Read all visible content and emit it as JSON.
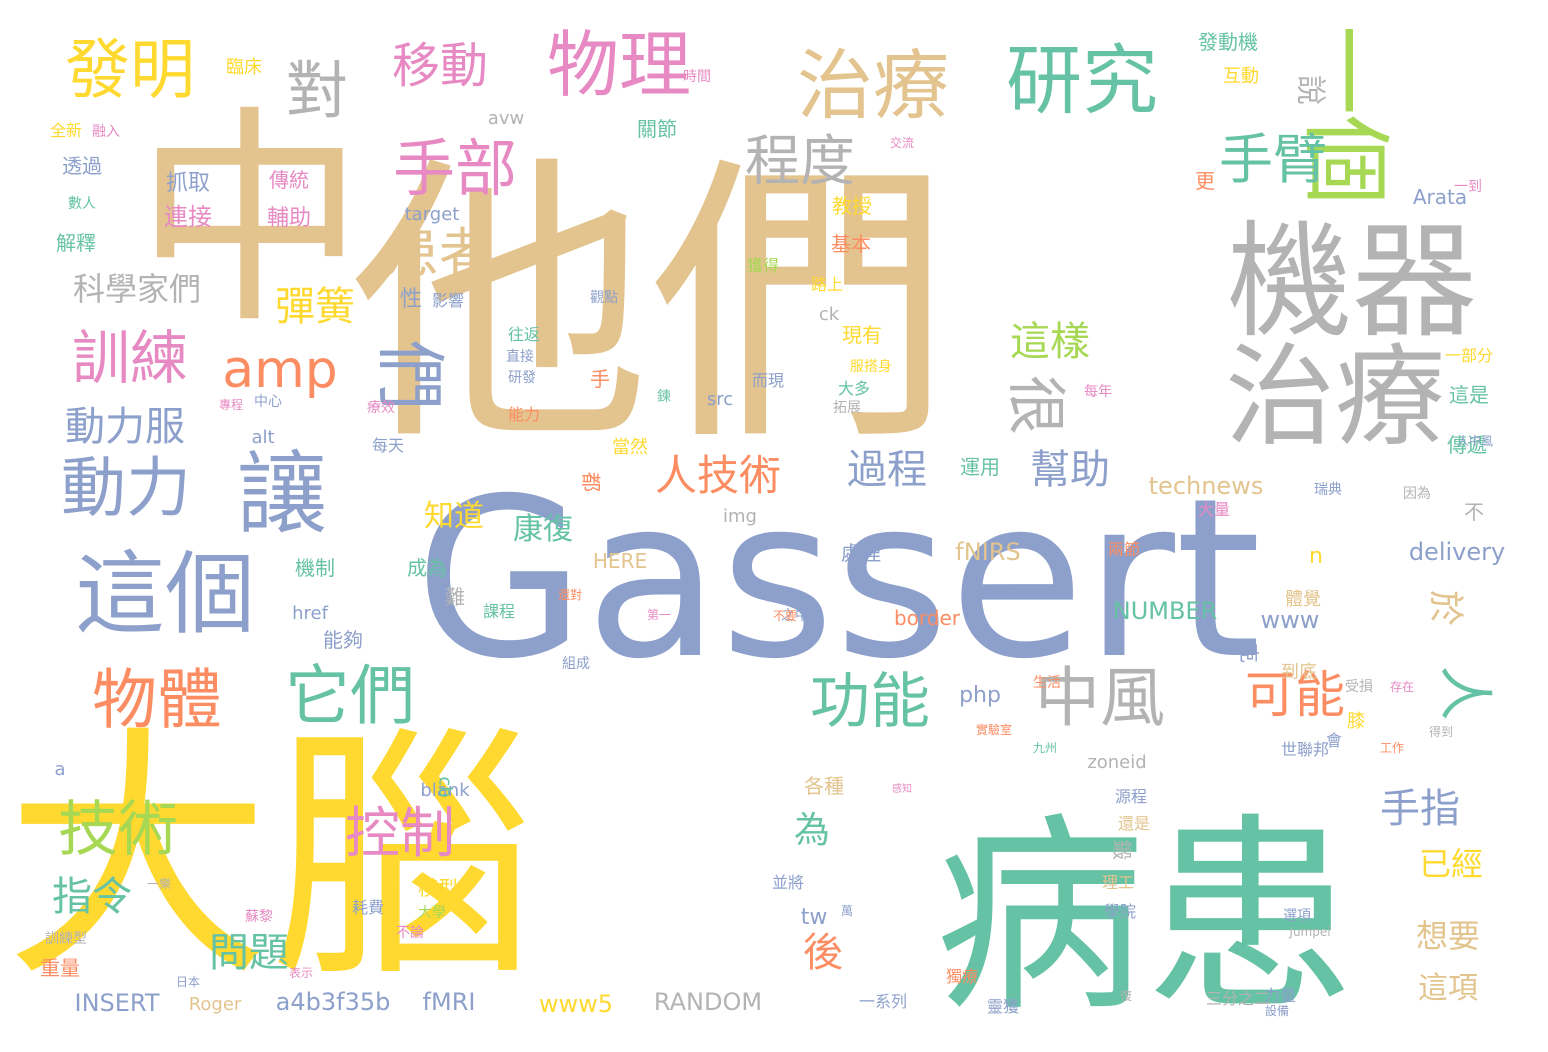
{
  "palette": {
    "tan": "#E3C48E",
    "blue": "#8DA0CB",
    "yellow": "#FFD92F",
    "green": "#66C2A5",
    "grey": "#B3B3B3",
    "pink": "#E78AC3",
    "orange": "#FC8D62",
    "lime": "#A6D854"
  },
  "words": [
    {
      "text": "他們",
      "color": "tan"
    },
    {
      "text": "中",
      "color": "tan"
    },
    {
      "text": "大腦",
      "color": "yellow"
    },
    {
      "text": "病患",
      "color": "green"
    },
    {
      "text": "Gassert",
      "color": "blue"
    },
    {
      "text": "機器",
      "color": "grey"
    },
    {
      "text": "一個",
      "color": "lime"
    },
    {
      "text": "治療",
      "color": "grey"
    },
    {
      "text": "研究",
      "color": "green"
    },
    {
      "text": "治療",
      "color": "tan"
    },
    {
      "text": "物理",
      "color": "pink"
    },
    {
      "text": "發明",
      "color": "yellow"
    },
    {
      "text": "對",
      "color": "grey"
    },
    {
      "text": "移動",
      "color": "pink"
    },
    {
      "text": "手部",
      "color": "pink"
    },
    {
      "text": "程度",
      "color": "grey"
    },
    {
      "text": "手臂",
      "color": "green"
    },
    {
      "text": "說",
      "color": "grey"
    },
    {
      "text": "讓",
      "color": "blue"
    },
    {
      "text": "動力",
      "color": "blue"
    },
    {
      "text": "訓練",
      "color": "pink"
    },
    {
      "text": "amp",
      "color": "orange"
    },
    {
      "text": "們",
      "color": "blue"
    },
    {
      "text": "很",
      "color": "grey"
    },
    {
      "text": "患者",
      "color": "tan"
    },
    {
      "text": "彈簧",
      "color": "yellow"
    },
    {
      "text": "這樣",
      "color": "lime"
    },
    {
      "text": "科學家們",
      "color": "grey"
    },
    {
      "text": "動力服",
      "color": "blue"
    },
    {
      "text": "這個",
      "color": "blue"
    },
    {
      "text": "人技術",
      "color": "orange"
    },
    {
      "text": "過程",
      "color": "blue"
    },
    {
      "text": "幫助",
      "color": "blue"
    },
    {
      "text": "物體",
      "color": "orange"
    },
    {
      "text": "它們",
      "color": "green"
    },
    {
      "text": "功能",
      "color": "green"
    },
    {
      "text": "中風",
      "color": "grey"
    },
    {
      "text": "可能",
      "color": "orange"
    },
    {
      "text": "人",
      "color": "green"
    },
    {
      "text": "技術",
      "color": "lime"
    },
    {
      "text": "控制",
      "color": "pink"
    },
    {
      "text": "康復",
      "color": "green"
    },
    {
      "text": "知道",
      "color": "yellow"
    },
    {
      "text": "於",
      "color": "tan"
    },
    {
      "text": "手指",
      "color": "blue"
    },
    {
      "text": "指令",
      "color": "green"
    },
    {
      "text": "問題",
      "color": "green"
    },
    {
      "text": "後",
      "color": "orange"
    },
    {
      "text": "為",
      "color": "green"
    },
    {
      "text": "已經",
      "color": "yellow"
    },
    {
      "text": "想要",
      "color": "tan"
    },
    {
      "text": "這項",
      "color": "tan"
    },
    {
      "text": "INSERT",
      "color": "blue"
    },
    {
      "text": "Roger",
      "color": "tan"
    },
    {
      "text": "a4b3f35b",
      "color": "blue"
    },
    {
      "text": "fMRI",
      "color": "blue"
    },
    {
      "text": "www5",
      "color": "yellow"
    },
    {
      "text": "RANDOM",
      "color": "grey"
    },
    {
      "text": "technews",
      "color": "tan"
    },
    {
      "text": "delivery",
      "color": "blue"
    },
    {
      "text": "NUMBER",
      "color": "green"
    },
    {
      "text": "fNIRS",
      "color": "tan"
    },
    {
      "text": "HERE",
      "color": "tan"
    },
    {
      "text": "border",
      "color": "orange"
    },
    {
      "text": "Arata",
      "color": "blue"
    },
    {
      "text": "target",
      "color": "blue"
    },
    {
      "text": "avw",
      "color": "grey"
    },
    {
      "text": "www",
      "color": "blue"
    },
    {
      "text": "php",
      "color": "blue"
    },
    {
      "text": "zoneid",
      "color": "grey"
    },
    {
      "text": "blank",
      "color": "blue"
    },
    {
      "text": "cb",
      "color": "green"
    },
    {
      "text": "tw",
      "color": "blue"
    },
    {
      "text": "src",
      "color": "blue"
    },
    {
      "text": "img",
      "color": "grey"
    },
    {
      "text": "href",
      "color": "blue"
    },
    {
      "text": "alt",
      "color": "blue"
    },
    {
      "text": "ck",
      "color": "grey"
    },
    {
      "text": "a",
      "color": "blue"
    },
    {
      "text": "n",
      "color": "yellow"
    },
    {
      "text": "Jumpei",
      "color": "grey"
    },
    {
      "text": "臨床",
      "color": "yellow"
    },
    {
      "text": "發動機",
      "color": "green"
    },
    {
      "text": "互動",
      "color": "yellow"
    },
    {
      "text": "時間",
      "color": "pink"
    },
    {
      "text": "關節",
      "color": "green"
    },
    {
      "text": "全新",
      "color": "yellow"
    },
    {
      "text": "融入",
      "color": "pink"
    },
    {
      "text": "透過",
      "color": "blue"
    },
    {
      "text": "抓取",
      "color": "blue"
    },
    {
      "text": "傳統",
      "color": "pink"
    },
    {
      "text": "連接",
      "color": "pink"
    },
    {
      "text": "輔助",
      "color": "pink"
    },
    {
      "text": "數人",
      "color": "green"
    },
    {
      "text": "解釋",
      "color": "green"
    },
    {
      "text": "教授",
      "color": "yellow"
    },
    {
      "text": "基本",
      "color": "orange"
    },
    {
      "text": "獲得",
      "color": "lime"
    },
    {
      "text": "路上",
      "color": "yellow"
    },
    {
      "text": "交流",
      "color": "pink"
    },
    {
      "text": "更",
      "color": "orange"
    },
    {
      "text": "一到",
      "color": "pink"
    },
    {
      "text": "性",
      "color": "blue"
    },
    {
      "text": "影響",
      "color": "blue"
    },
    {
      "text": "觀點",
      "color": "blue"
    },
    {
      "text": "現有",
      "color": "yellow"
    },
    {
      "text": "服搭身",
      "color": "yellow"
    },
    {
      "text": "往返",
      "color": "green"
    },
    {
      "text": "直接",
      "color": "blue"
    },
    {
      "text": "研發",
      "color": "blue"
    },
    {
      "text": "手",
      "color": "orange"
    },
    {
      "text": "鍊",
      "color": "green"
    },
    {
      "text": "而現",
      "color": "blue"
    },
    {
      "text": "大多",
      "color": "green"
    },
    {
      "text": "拓展",
      "color": "grey"
    },
    {
      "text": "能力",
      "color": "orange"
    },
    {
      "text": "中心",
      "color": "blue"
    },
    {
      "text": "專程",
      "color": "pink"
    },
    {
      "text": "療效",
      "color": "pink"
    },
    {
      "text": "每天",
      "color": "blue"
    },
    {
      "text": "當然",
      "color": "yellow"
    },
    {
      "text": "運用",
      "color": "green"
    },
    {
      "text": "都",
      "color": "orange"
    },
    {
      "text": "這是",
      "color": "green"
    },
    {
      "text": "傳遞",
      "color": "green"
    },
    {
      "text": "不",
      "color": "grey"
    },
    {
      "text": "一部分",
      "color": "yellow"
    },
    {
      "text": "每年",
      "color": "pink"
    },
    {
      "text": "人中風",
      "color": "blue"
    },
    {
      "text": "瑞典",
      "color": "blue"
    },
    {
      "text": "因為",
      "color": "grey"
    },
    {
      "text": "大量",
      "color": "pink"
    },
    {
      "text": "機制",
      "color": "green"
    },
    {
      "text": "成為",
      "color": "green"
    },
    {
      "text": "難",
      "color": "grey"
    },
    {
      "text": "課程",
      "color": "green"
    },
    {
      "text": "處理",
      "color": "blue"
    },
    {
      "text": "兩節",
      "color": "orange"
    },
    {
      "text": "能夠",
      "color": "blue"
    },
    {
      "text": "組成",
      "color": "blue"
    },
    {
      "text": "之中",
      "color": "blue"
    },
    {
      "text": "體覺",
      "color": "tan"
    },
    {
      "text": "克",
      "color": "blue"
    },
    {
      "text": "到底",
      "color": "tan"
    },
    {
      "text": "受損",
      "color": "grey"
    },
    {
      "text": "膝",
      "color": "yellow"
    },
    {
      "text": "會",
      "color": "blue"
    },
    {
      "text": "世聯邦",
      "color": "blue"
    },
    {
      "text": "工作",
      "color": "orange"
    },
    {
      "text": "得到",
      "color": "grey"
    },
    {
      "text": "各種",
      "color": "tan"
    },
    {
      "text": "源程",
      "color": "blue"
    },
    {
      "text": "還是",
      "color": "tan"
    },
    {
      "text": "鍛",
      "color": "grey"
    },
    {
      "text": "理工",
      "color": "tan"
    },
    {
      "text": "學院",
      "color": "blue"
    },
    {
      "text": "並將",
      "color": "blue"
    },
    {
      "text": "模型",
      "color": "yellow"
    },
    {
      "text": "耗費",
      "color": "blue"
    },
    {
      "text": "一樂",
      "color": "grey"
    },
    {
      "text": "蘇黎",
      "color": "pink"
    },
    {
      "text": "不論",
      "color": "pink"
    },
    {
      "text": "訓練型",
      "color": "grey"
    },
    {
      "text": "重量",
      "color": "orange"
    },
    {
      "text": "日本",
      "color": "blue"
    },
    {
      "text": "獨療",
      "color": "orange"
    },
    {
      "text": "選項",
      "color": "blue"
    },
    {
      "text": "力量",
      "color": "blue"
    },
    {
      "text": "一系列",
      "color": "blue"
    },
    {
      "text": "三分之二",
      "color": "grey"
    },
    {
      "text": "靈獲",
      "color": "blue"
    },
    {
      "text": "復",
      "color": "grey"
    },
    {
      "text": "表示",
      "color": "pink"
    },
    {
      "text": "感知",
      "color": "pink"
    },
    {
      "text": "實驗室",
      "color": "orange"
    },
    {
      "text": "設備",
      "color": "blue"
    },
    {
      "text": "生活",
      "color": "orange"
    },
    {
      "text": "九州",
      "color": "green"
    },
    {
      "text": "第一",
      "color": "pink"
    },
    {
      "text": "還對",
      "color": "orange"
    },
    {
      "text": "不要",
      "color": "orange"
    },
    {
      "text": "存在",
      "color": "pink"
    },
    {
      "text": "萬",
      "color": "blue"
    },
    {
      "text": "大學",
      "color": "lime"
    }
  ]
}
